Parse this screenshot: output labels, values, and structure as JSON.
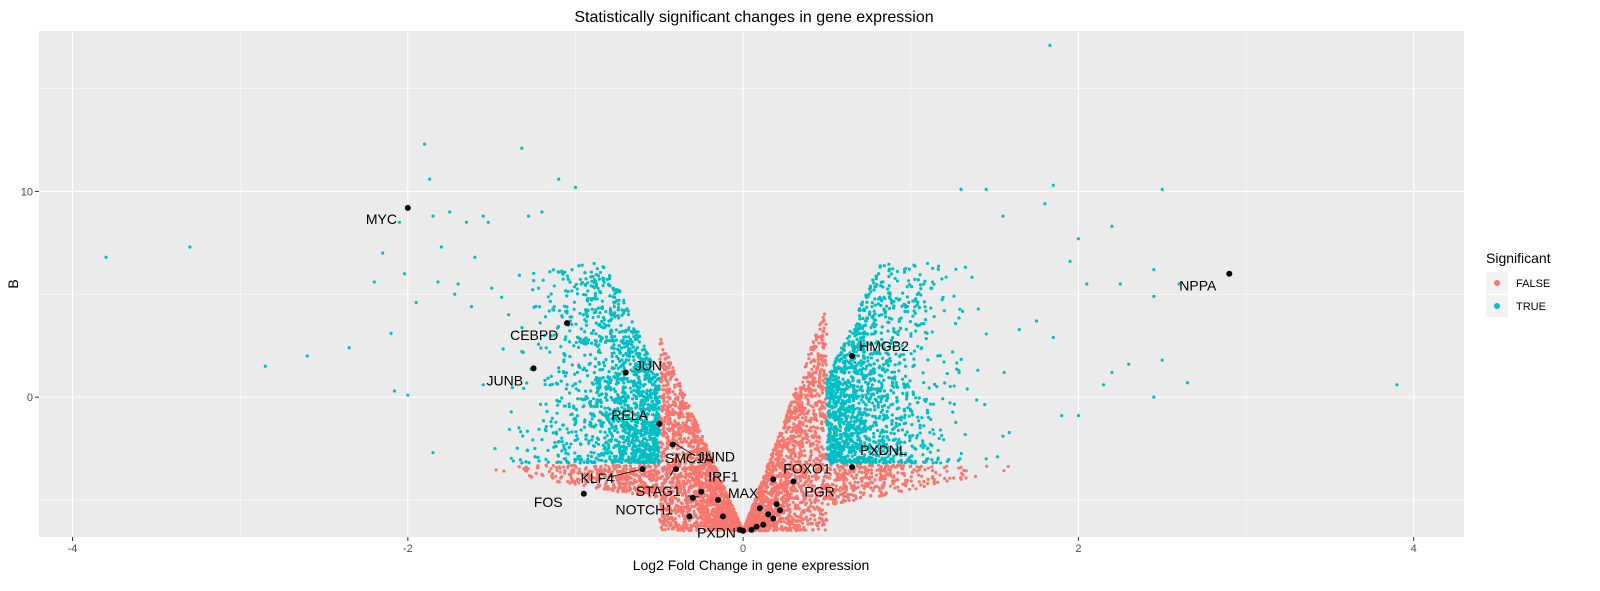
{
  "chart_data": {
    "type": "scatter",
    "title": "Statistically significant changes in gene expression",
    "xlabel": "Log2 Fold Change in gene expression",
    "ylabel": "B",
    "xlim": [
      -4.2,
      4.3
    ],
    "ylim": [
      -6.8,
      17.8
    ],
    "x_ticks": [
      -4,
      -2,
      0,
      2,
      4
    ],
    "y_ticks": [
      0,
      10
    ],
    "x_tick_labels": [
      "-4",
      "-2",
      "0",
      "2",
      "4"
    ],
    "y_tick_labels": [
      "0",
      "10"
    ],
    "grid": true,
    "legend": {
      "title": "Significant",
      "position": "right",
      "entries": [
        {
          "label": "FALSE",
          "color": "#F8766D"
        },
        {
          "label": "TRUE",
          "color": "#00BFC4"
        }
      ]
    },
    "colors": {
      "FALSE": "#F8766D",
      "TRUE": "#00BFC4",
      "highlight": "#000000",
      "panel": "#EBEBEB",
      "grid": "#FFFFFF"
    },
    "series": [
      {
        "name": "TRUE",
        "points": [
          [
            -3.8,
            6.8
          ],
          [
            -3.3,
            7.3
          ],
          [
            -2.85,
            1.5
          ],
          [
            -2.6,
            2.0
          ],
          [
            -2.35,
            2.4
          ],
          [
            -2.2,
            5.6
          ],
          [
            -2.15,
            7.0
          ],
          [
            -2.1,
            3.1
          ],
          [
            -2.08,
            0.3
          ],
          [
            -2.05,
            8.5
          ],
          [
            -2.02,
            6.0
          ],
          [
            -2.0,
            0.1
          ],
          [
            -1.95,
            4.6
          ],
          [
            -1.9,
            12.3
          ],
          [
            -1.87,
            10.6
          ],
          [
            -1.85,
            8.8
          ],
          [
            -1.82,
            5.6
          ],
          [
            -1.8,
            7.3
          ],
          [
            -1.75,
            9.0
          ],
          [
            -1.72,
            5.0
          ],
          [
            -1.7,
            5.5
          ],
          [
            -1.65,
            8.5
          ],
          [
            -1.62,
            4.4
          ],
          [
            -1.6,
            6.8
          ],
          [
            -1.55,
            8.8
          ],
          [
            -1.52,
            8.5
          ],
          [
            -1.5,
            5.3
          ],
          [
            -1.32,
            12.1
          ],
          [
            -1.28,
            8.8
          ],
          [
            -1.2,
            9.0
          ],
          [
            -1.1,
            10.6
          ],
          [
            -1.0,
            10.2
          ],
          [
            -1.85,
            -2.7
          ],
          [
            -1.55,
            0.6
          ],
          [
            -1.48,
            -2.5
          ],
          [
            1.3,
            10.1
          ],
          [
            1.45,
            10.1
          ],
          [
            1.55,
            8.8
          ],
          [
            1.8,
            9.4
          ],
          [
            1.85,
            10.3
          ],
          [
            1.83,
            17.1
          ],
          [
            1.95,
            6.6
          ],
          [
            2.0,
            7.7
          ],
          [
            2.2,
            8.3
          ],
          [
            2.25,
            5.5
          ],
          [
            2.45,
            4.9
          ],
          [
            2.5,
            10.1
          ],
          [
            2.45,
            6.2
          ],
          [
            2.5,
            1.8
          ],
          [
            2.6,
            5.5
          ],
          [
            2.65,
            0.7
          ],
          [
            3.9,
            0.6
          ],
          [
            2.45,
            0.0
          ],
          [
            2.3,
            1.6
          ],
          [
            2.2,
            1.2
          ],
          [
            2.15,
            0.6
          ],
          [
            2.05,
            5.5
          ],
          [
            1.85,
            2.9
          ],
          [
            1.75,
            3.7
          ],
          [
            1.9,
            -0.9
          ],
          [
            2.0,
            -0.9
          ],
          [
            1.55,
            -1.9
          ],
          [
            1.45,
            -3.0
          ],
          [
            1.2,
            4.2
          ],
          [
            1.1,
            6.5
          ]
        ]
      }
    ],
    "highlighted_genes": [
      {
        "name": "MYC",
        "x": -2.0,
        "y": 9.2
      },
      {
        "name": "NPPA",
        "x": 2.9,
        "y": 6.0
      },
      {
        "name": "CEBPD",
        "x": -1.05,
        "y": 3.6
      },
      {
        "name": "HMGB2",
        "x": 0.65,
        "y": 2.0
      },
      {
        "name": "JUNB",
        "x": -1.25,
        "y": 1.4
      },
      {
        "name": "JUN",
        "x": -0.7,
        "y": 1.2
      },
      {
        "name": "RELA",
        "x": -0.5,
        "y": -1.3
      },
      {
        "name": "JUND",
        "x": -0.42,
        "y": -2.3
      },
      {
        "name": "PXDNL",
        "x": 0.65,
        "y": -3.4
      },
      {
        "name": "SMC1A",
        "x": -0.4,
        "y": -3.5
      },
      {
        "name": "KLF4",
        "x": -0.6,
        "y": -3.5
      },
      {
        "name": "FOXO1",
        "x": 0.18,
        "y": -4.0
      },
      {
        "name": "IRF1",
        "x": -0.25,
        "y": -4.6
      },
      {
        "name": "STAG1",
        "x": -0.3,
        "y": -4.9
      },
      {
        "name": "PGR",
        "x": 0.3,
        "y": -4.1
      },
      {
        "name": "FOS",
        "x": -0.95,
        "y": -4.7
      },
      {
        "name": "MAX",
        "x": -0.15,
        "y": -5.0
      },
      {
        "name": "NOTCH1",
        "x": -0.32,
        "y": -5.8
      },
      {
        "name": "PXDN",
        "x": -0.12,
        "y": -5.8
      }
    ],
    "extra_black_points": [
      [
        0.0,
        -6.5
      ],
      [
        0.05,
        -6.45
      ],
      [
        0.08,
        -6.3
      ],
      [
        0.12,
        -6.2
      ],
      [
        0.18,
        -5.9
      ],
      [
        0.1,
        -5.4
      ],
      [
        0.2,
        -5.2
      ],
      [
        0.22,
        -5.5
      ],
      [
        -0.02,
        -6.45
      ],
      [
        0.15,
        -5.7
      ]
    ]
  }
}
